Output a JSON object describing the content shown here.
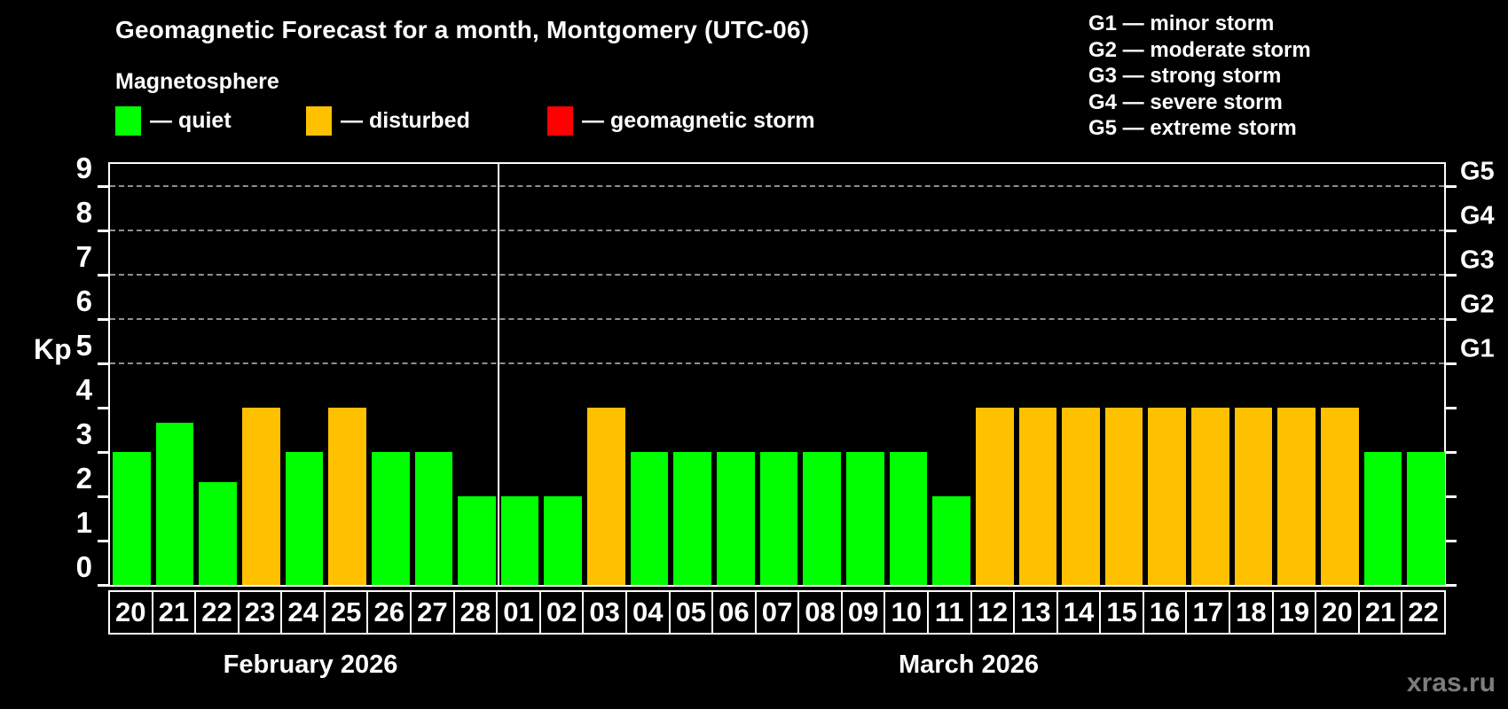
{
  "title": "Geomagnetic Forecast for a month, Montgomery (UTC-06)",
  "subtitle": "Magnetosphere",
  "legend": {
    "items": [
      {
        "label": "— quiet",
        "status": "quiet"
      },
      {
        "label": "— disturbed",
        "status": "disturbed"
      },
      {
        "label": "— geomagnetic storm",
        "status": "storm"
      }
    ]
  },
  "status_colors": {
    "quiet": "#00ff00",
    "disturbed": "#ffc000",
    "storm": "#ff0000"
  },
  "storm_scale_legend": [
    "G1 — minor storm",
    "G2 — moderate storm",
    "G3 — strong storm",
    "G4 — severe storm",
    "G5 — extreme storm"
  ],
  "axes": {
    "y_label": "Kp",
    "y_ticks": [
      0,
      1,
      2,
      3,
      4,
      5,
      6,
      7,
      8,
      9
    ],
    "grid_levels": [
      5,
      6,
      7,
      8,
      9
    ],
    "right_labels": [
      {
        "text": "G1",
        "kp": 5
      },
      {
        "text": "G2",
        "kp": 6
      },
      {
        "text": "G3",
        "kp": 7
      },
      {
        "text": "G4",
        "kp": 8
      },
      {
        "text": "G5",
        "kp": 9
      }
    ]
  },
  "months": [
    {
      "name": "February 2026",
      "days": 9
    },
    {
      "name": "March 2026",
      "days": 22
    }
  ],
  "watermark": "xras.ru",
  "chart_data": {
    "type": "bar",
    "title": "Geomagnetic Forecast for a month, Montgomery (UTC-06)",
    "xlabel": "",
    "ylabel": "Kp",
    "ylim": [
      0,
      9.6
    ],
    "grid": "dashed horizontal at Kp 5-9 only",
    "legend_position": "top",
    "categories": [
      "20",
      "21",
      "22",
      "23",
      "24",
      "25",
      "26",
      "27",
      "28",
      "01",
      "02",
      "03",
      "04",
      "05",
      "06",
      "07",
      "08",
      "09",
      "10",
      "11",
      "12",
      "13",
      "14",
      "15",
      "16",
      "17",
      "18",
      "19",
      "20",
      "21",
      "22"
    ],
    "values": [
      3,
      3.67,
      2.33,
      4,
      3,
      4,
      3,
      3,
      2,
      2,
      2,
      4,
      3,
      3,
      3,
      3,
      3,
      3,
      3,
      2,
      4,
      4,
      4,
      4,
      4,
      4,
      4,
      4,
      4,
      3,
      3
    ],
    "statuses": [
      "quiet",
      "quiet",
      "quiet",
      "disturbed",
      "quiet",
      "disturbed",
      "quiet",
      "quiet",
      "quiet",
      "quiet",
      "quiet",
      "disturbed",
      "quiet",
      "quiet",
      "quiet",
      "quiet",
      "quiet",
      "quiet",
      "quiet",
      "quiet",
      "disturbed",
      "disturbed",
      "disturbed",
      "disturbed",
      "disturbed",
      "disturbed",
      "disturbed",
      "disturbed",
      "disturbed",
      "quiet",
      "quiet"
    ],
    "month_of_bar": [
      "February 2026",
      "February 2026",
      "February 2026",
      "February 2026",
      "February 2026",
      "February 2026",
      "February 2026",
      "February 2026",
      "February 2026",
      "March 2026",
      "March 2026",
      "March 2026",
      "March 2026",
      "March 2026",
      "March 2026",
      "March 2026",
      "March 2026",
      "March 2026",
      "March 2026",
      "March 2026",
      "March 2026",
      "March 2026",
      "March 2026",
      "March 2026",
      "March 2026",
      "March 2026",
      "March 2026",
      "March 2026",
      "March 2026",
      "March 2026",
      "March 2026"
    ]
  }
}
